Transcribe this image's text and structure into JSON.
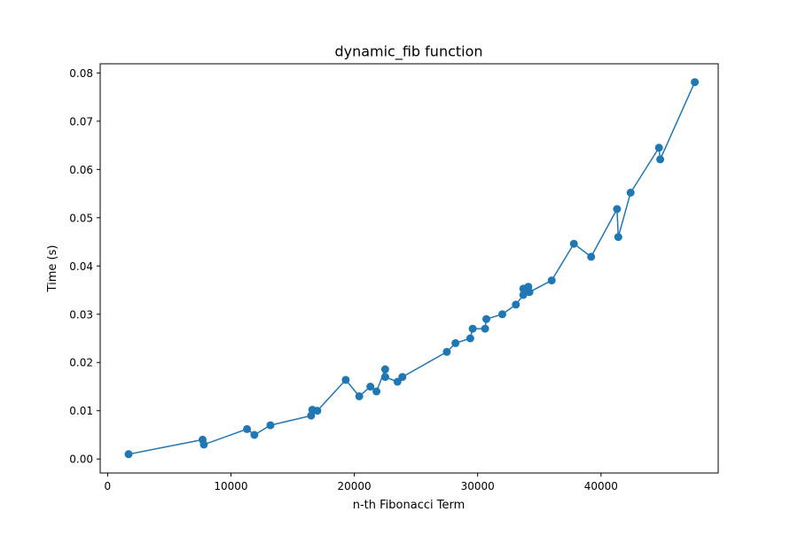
{
  "chart_data": {
    "type": "line",
    "title": "dynamic_fib function",
    "xlabel": "n-th Fibonacci Term",
    "ylabel": "Time (s)",
    "xlim": [
      -600,
      49500
    ],
    "ylim": [
      -0.0029,
      0.0819
    ],
    "xticks": [
      0,
      10000,
      20000,
      30000,
      40000
    ],
    "xtick_labels": [
      "0",
      "10000",
      "20000",
      "30000",
      "40000"
    ],
    "yticks": [
      0.0,
      0.01,
      0.02,
      0.03,
      0.04,
      0.05,
      0.06,
      0.07,
      0.08
    ],
    "ytick_labels": [
      "0.00",
      "0.01",
      "0.02",
      "0.03",
      "0.04",
      "0.05",
      "0.06",
      "0.07",
      "0.08"
    ],
    "grid": false,
    "color": "#1f77b4",
    "marker": "circle",
    "x": [
      1700,
      7700,
      7800,
      11300,
      11900,
      13200,
      16500,
      16600,
      17000,
      19300,
      20400,
      21300,
      21800,
      22500,
      22500,
      23500,
      23900,
      27500,
      28200,
      29400,
      29600,
      30600,
      30700,
      32000,
      33100,
      33700,
      33700,
      34100,
      34200,
      36000,
      37800,
      39200,
      41300,
      41400,
      42400,
      44700,
      44800,
      47600
    ],
    "y": [
      0.001,
      0.004,
      0.003,
      0.0062,
      0.005,
      0.007,
      0.009,
      0.0102,
      0.01,
      0.0164,
      0.013,
      0.015,
      0.014,
      0.0186,
      0.017,
      0.016,
      0.017,
      0.0222,
      0.024,
      0.025,
      0.027,
      0.027,
      0.029,
      0.03,
      0.032,
      0.034,
      0.0353,
      0.0357,
      0.0346,
      0.037,
      0.0446,
      0.0419,
      0.0518,
      0.046,
      0.0552,
      0.0645,
      0.0621,
      0.0781
    ]
  }
}
